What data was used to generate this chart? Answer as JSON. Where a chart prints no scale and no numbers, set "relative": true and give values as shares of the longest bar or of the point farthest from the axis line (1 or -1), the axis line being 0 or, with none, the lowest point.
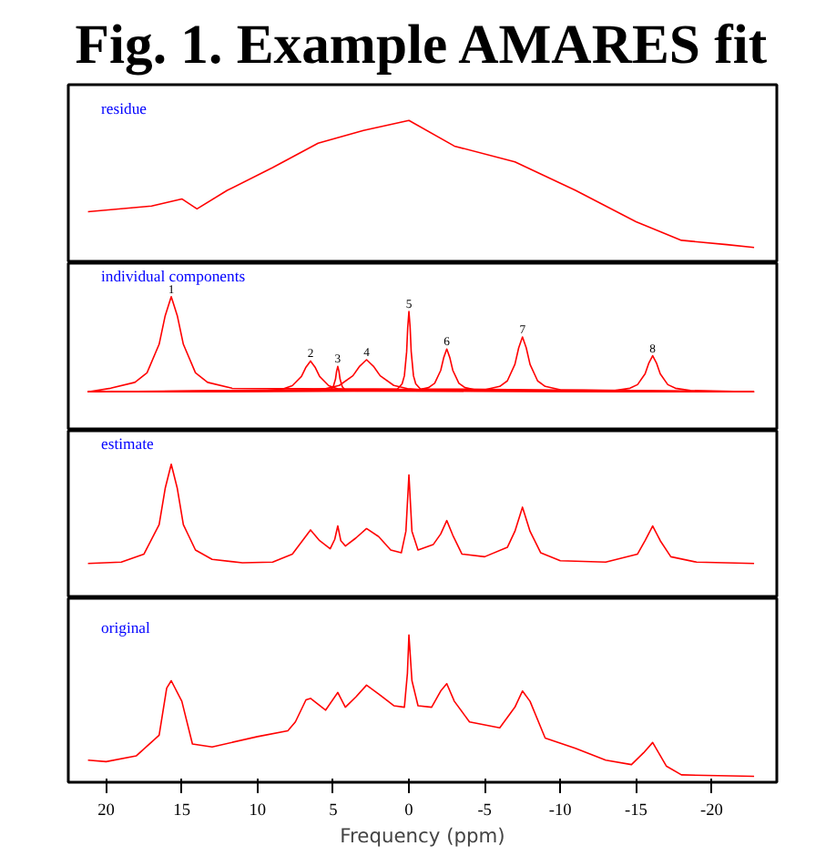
{
  "chart_data": [
    {
      "type": "line",
      "title": "Fig. 1. Example AMARES fit",
      "subtitle": "residue",
      "relative": true,
      "tick_labels": false,
      "xlim": [
        22.5,
        -24.3
      ],
      "grid": false,
      "series": [
        {
          "color": "#ff0000",
          "x": [
            21.2,
            17,
            15,
            14,
            12,
            9,
            6,
            3,
            0,
            -3,
            -7,
            -11,
            -15,
            -18,
            -21,
            -22.8
          ],
          "values": [
            0.36,
            0.4,
            0.45,
            0.38,
            0.51,
            0.67,
            0.84,
            0.93,
            1.0,
            0.82,
            0.71,
            0.51,
            0.29,
            0.16,
            0.13,
            0.11
          ]
        }
      ]
    },
    {
      "type": "line",
      "subtitle": "individual components",
      "relative": true,
      "tick_labels": false,
      "xlim": [
        22.5,
        -24.3
      ],
      "grid": false,
      "series": [
        {
          "color": "#ff0000",
          "x": [
            21.2,
            19.7,
            18.1,
            17.3,
            16.5,
            16.1,
            15.7,
            15.3,
            14.9,
            14.1,
            13.3,
            11.7,
            -22.8
          ],
          "values": [
            0.29,
            0.317,
            0.361,
            0.432,
            0.645,
            0.858,
            1.0,
            0.858,
            0.645,
            0.432,
            0.361,
            0.317,
            0.29
          ]
        },
        {
          "color": "#ff0000",
          "x": [
            21.2,
            9.5,
            8.3,
            7.7,
            7.1,
            6.8,
            6.5,
            6.2,
            5.9,
            5.3,
            4.7,
            3.5,
            -22.8
          ],
          "values": [
            0.29,
            0.299,
            0.313,
            0.336,
            0.405,
            0.474,
            0.52,
            0.474,
            0.405,
            0.336,
            0.313,
            0.299,
            0.29
          ]
        },
        {
          "color": "#ff0000",
          "x": [
            21.2,
            5.45,
            5.15,
            5.0,
            4.85,
            4.78,
            4.7,
            4.62,
            4.55,
            4.4,
            4.25,
            3.95,
            -22.8
          ],
          "values": [
            0.29,
            0.297,
            0.309,
            0.328,
            0.385,
            0.442,
            0.48,
            0.442,
            0.385,
            0.328,
            0.309,
            0.297,
            0.29
          ]
        },
        {
          "color": "#ff0000",
          "x": [
            21.2,
            7.3,
            5.5,
            4.6,
            3.7,
            3.25,
            2.8,
            2.35,
            1.9,
            1.0,
            0.1,
            -1.7,
            -22.8
          ],
          "values": [
            0.29,
            0.299,
            0.314,
            0.338,
            0.41,
            0.482,
            0.53,
            0.482,
            0.41,
            0.338,
            0.314,
            0.299,
            0.29
          ]
        },
        {
          "color": "#ff0000",
          "x": [
            21.2,
            0.75,
            0.45,
            0.3,
            0.15,
            0.08,
            0,
            -0.08,
            -0.15,
            -0.3,
            -0.45,
            -0.75,
            -22.8
          ],
          "values": [
            0.29,
            0.313,
            0.35,
            0.41,
            0.59,
            0.77,
            0.89,
            0.77,
            0.59,
            0.41,
            0.35,
            0.313,
            0.29
          ]
        },
        {
          "color": "#ff0000",
          "x": [
            21.2,
            -0.5,
            -1.3,
            -1.7,
            -2.1,
            -2.3,
            -2.5,
            -2.7,
            -2.9,
            -3.3,
            -3.7,
            -4.5,
            -22.8
          ],
          "values": [
            0.29,
            0.302,
            0.322,
            0.354,
            0.45,
            0.546,
            0.61,
            0.546,
            0.45,
            0.354,
            0.322,
            0.302,
            0.29
          ]
        },
        {
          "color": "#ff0000",
          "x": [
            21.2,
            -5,
            -6,
            -6.5,
            -7,
            -7.25,
            -7.5,
            -7.75,
            -8,
            -8.5,
            -9,
            -10,
            -22.8
          ],
          "values": [
            0.29,
            0.306,
            0.331,
            0.372,
            0.495,
            0.618,
            0.7,
            0.618,
            0.495,
            0.372,
            0.331,
            0.306,
            0.29
          ]
        },
        {
          "color": "#ff0000",
          "x": [
            21.2,
            -13.6,
            -14.6,
            -15.1,
            -15.6,
            -15.85,
            -16.1,
            -16.35,
            -16.6,
            -17.1,
            -17.6,
            -18.6,
            -22.8
          ],
          "values": [
            0.29,
            0.3,
            0.317,
            0.344,
            0.425,
            0.506,
            0.56,
            0.506,
            0.425,
            0.344,
            0.317,
            0.3,
            0.29
          ]
        }
      ],
      "annotations": [
        "1",
        "2",
        "3",
        "4",
        "5",
        "6",
        "7",
        "8"
      ]
    },
    {
      "type": "line",
      "subtitle": "estimate",
      "relative": true,
      "tick_labels": false,
      "xlim": [
        22.5,
        -24.3
      ],
      "grid": false,
      "series": [
        {
          "color": "#ff0000",
          "x": [
            21.2,
            19,
            17.5,
            16.5,
            16.1,
            15.7,
            15.3,
            14.9,
            14.1,
            13,
            11,
            9,
            7.7,
            7.1,
            6.5,
            5.9,
            5.2,
            4.9,
            4.7,
            4.5,
            4.2,
            3.5,
            2.8,
            2.0,
            1.2,
            0.5,
            0.2,
            0,
            -0.2,
            -0.6,
            -1.6,
            -2.1,
            -2.5,
            -2.9,
            -3.5,
            -5,
            -6.5,
            -7,
            -7.5,
            -8,
            -8.7,
            -10,
            -13,
            -15.1,
            -15.6,
            -16.1,
            -16.6,
            -17.3,
            -19,
            -22.8
          ],
          "values": [
            0.26,
            0.27,
            0.33,
            0.55,
            0.82,
            1.0,
            0.82,
            0.55,
            0.36,
            0.29,
            0.265,
            0.27,
            0.33,
            0.42,
            0.51,
            0.43,
            0.37,
            0.44,
            0.54,
            0.43,
            0.39,
            0.45,
            0.52,
            0.46,
            0.36,
            0.34,
            0.5,
            0.92,
            0.5,
            0.36,
            0.4,
            0.48,
            0.58,
            0.47,
            0.33,
            0.31,
            0.38,
            0.5,
            0.68,
            0.5,
            0.34,
            0.28,
            0.27,
            0.33,
            0.43,
            0.54,
            0.43,
            0.31,
            0.27,
            0.26
          ]
        }
      ]
    },
    {
      "type": "line",
      "subtitle": "original",
      "relative": true,
      "tick_labels": "x",
      "xlabel": "Frequency (ppm)",
      "xlim": [
        22.5,
        -24.3
      ],
      "xticks": [
        20,
        15,
        10,
        5,
        0,
        -5,
        -10,
        -15,
        -20
      ],
      "grid": false,
      "series": [
        {
          "color": "#ff0000",
          "x": [
            21.2,
            20,
            18,
            16.5,
            16,
            15.7,
            15,
            14.3,
            13,
            10,
            8,
            7.5,
            6.8,
            6.5,
            5.5,
            4.7,
            4.2,
            3.5,
            2.8,
            2,
            1,
            0.3,
            0.1,
            0,
            -0.2,
            -0.6,
            -1.5,
            -2.1,
            -2.5,
            -3,
            -4,
            -6,
            -7,
            -7.5,
            -8,
            -9,
            -11,
            -13,
            -14.7,
            -15.5,
            -16.1,
            -17,
            -18,
            -22.8
          ],
          "values": [
            0.15,
            0.14,
            0.18,
            0.32,
            0.64,
            0.69,
            0.55,
            0.26,
            0.24,
            0.31,
            0.35,
            0.41,
            0.56,
            0.57,
            0.49,
            0.61,
            0.51,
            0.58,
            0.66,
            0.6,
            0.52,
            0.51,
            0.74,
            1.0,
            0.69,
            0.52,
            0.51,
            0.62,
            0.67,
            0.55,
            0.41,
            0.37,
            0.51,
            0.62,
            0.55,
            0.3,
            0.23,
            0.15,
            0.12,
            0.2,
            0.27,
            0.11,
            0.05,
            0.04
          ]
        }
      ]
    }
  ]
}
